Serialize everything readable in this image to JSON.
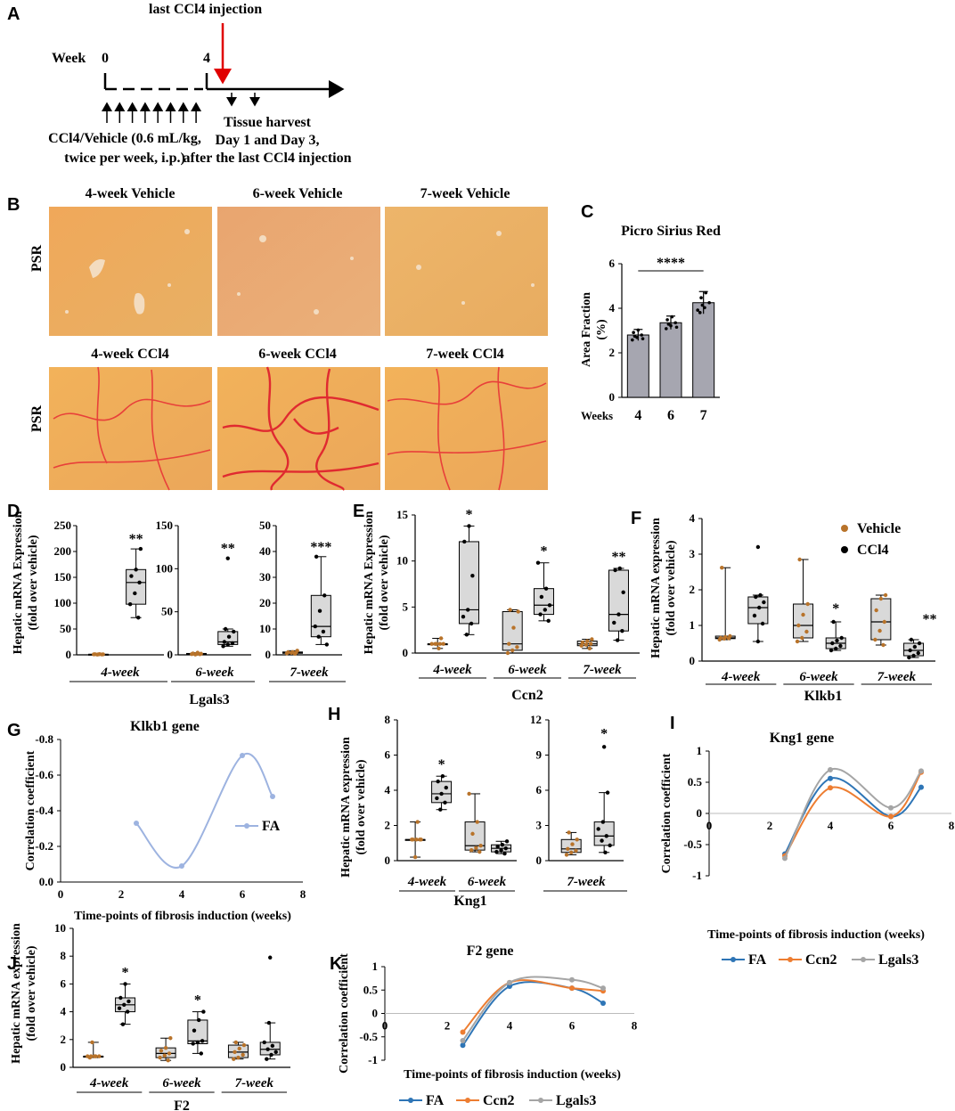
{
  "panel_labels": [
    "A",
    "B",
    "C",
    "D",
    "E",
    "F",
    "G",
    "H",
    "I",
    "J",
    "K"
  ],
  "panel_a": {
    "last_injection": "last CCl4 injection",
    "week_label": "Week",
    "week_start": "0",
    "week_end": "4",
    "dosing_line1": "CCl4/Vehicle (0.6 mL/kg,",
    "dosing_line2": "twice per week,   i.p.)",
    "harvest_line1": "Tissue harvest",
    "harvest_line2": "Day 1 and Day 3,",
    "harvest_line3": "after the last CCl4 injection"
  },
  "panel_b": {
    "row_label": "PSR",
    "images": [
      {
        "caption": "4-week Vehicle",
        "kind": "vehicle"
      },
      {
        "caption": "6-week Vehicle",
        "kind": "vehicle"
      },
      {
        "caption": "7-week Vehicle",
        "kind": "vehicle"
      },
      {
        "caption": "4-week CCl4",
        "kind": "ccl4"
      },
      {
        "caption": "6-week CCl4",
        "kind": "ccl4"
      },
      {
        "caption": "7-week CCl4",
        "kind": "ccl4"
      }
    ]
  },
  "colors": {
    "vehicle": "#b8732a",
    "ccl4": "#000000",
    "box": "#d9d9d9",
    "fa": "#2e75b6",
    "fa_light": "#9db3e0",
    "ccn2": "#ed7d31",
    "lgals3": "#a5a5a5",
    "red_arrow": "#e00000"
  },
  "chart_data": [
    {
      "id": "C",
      "type": "bar",
      "title": "Picro Sirius Red",
      "xlabel": "Weeks",
      "ylabel": "Area Fraction (%)",
      "categories": [
        "4",
        "6",
        "7"
      ],
      "values": [
        2.8,
        3.35,
        4.25
      ],
      "errors": [
        0.25,
        0.3,
        0.5
      ],
      "ylim": [
        0,
        6
      ],
      "yticks": [
        0,
        2,
        4,
        6
      ],
      "significance": "****"
    },
    {
      "id": "D",
      "type": "box",
      "gene": "Lgals3",
      "ylabel": "Hepatic mRNA Expression (fold over vehicle)",
      "groups": [
        {
          "label": "4-week",
          "ylim": [
            0,
            250
          ],
          "yticks": [
            0,
            50,
            100,
            150,
            200,
            250
          ],
          "star": "**",
          "vehicle": {
            "min": 0.5,
            "q1": 0.8,
            "median": 1,
            "q3": 1.1,
            "max": 1.3
          },
          "ccl4": {
            "min": 72,
            "q1": 98,
            "median": 140,
            "q3": 165,
            "max": 205
          }
        },
        {
          "label": "6-week",
          "ylim": [
            0,
            150
          ],
          "yticks": [
            0,
            50,
            100,
            150
          ],
          "star": "**",
          "vehicle": {
            "min": 0.4,
            "q1": 0.7,
            "median": 1,
            "q3": 1.6,
            "max": 2.5
          },
          "ccl4": {
            "min": 10,
            "q1": 12,
            "median": 15,
            "q3": 27,
            "max": 30,
            "outlier": 112
          }
        },
        {
          "label": "7-week",
          "ylim": [
            0,
            50
          ],
          "yticks": [
            0,
            10,
            20,
            30,
            40,
            50
          ],
          "star": "***",
          "vehicle": {
            "min": 0.4,
            "q1": 0.6,
            "median": 0.9,
            "q3": 1.1,
            "max": 1.6
          },
          "ccl4": {
            "min": 4,
            "q1": 7,
            "median": 11,
            "q3": 23,
            "max": 38
          }
        }
      ]
    },
    {
      "id": "E",
      "type": "box",
      "gene": "Ccn2",
      "ylabel": "Hepatic mRNA Expression (fold over vehicle)",
      "ylim": [
        0,
        15
      ],
      "yticks": [
        0,
        5,
        10,
        15
      ],
      "groups": [
        {
          "label": "4-week",
          "star": "*",
          "vehicle": {
            "min": 0.5,
            "q1": 1,
            "median": 1,
            "q3": 1,
            "max": 1.6
          },
          "ccl4": {
            "min": 2,
            "q1": 3.2,
            "median": 4.7,
            "q3": 12.1,
            "max": 13.8
          }
        },
        {
          "label": "6-week",
          "star": "*",
          "vehicle": {
            "min": 0,
            "q1": 0.3,
            "median": 1,
            "q3": 4.5,
            "max": 4.7
          },
          "ccl4": {
            "min": 3.5,
            "q1": 4.2,
            "median": 5.2,
            "q3": 7,
            "max": 9.8
          }
        },
        {
          "label": "7-week",
          "star": "**",
          "vehicle": {
            "min": 0.5,
            "q1": 0.8,
            "median": 1,
            "q3": 1.3,
            "max": 1.5
          },
          "ccl4": {
            "min": 1.4,
            "q1": 2.4,
            "median": 4.2,
            "q3": 9,
            "max": 9.2
          }
        }
      ]
    },
    {
      "id": "F",
      "type": "box",
      "gene": "Klkb1",
      "ylabel": "Hepatic mRNA expression (fold over vehicle)",
      "ylim": [
        0,
        4
      ],
      "yticks": [
        0,
        1,
        2,
        3,
        4
      ],
      "legend": [
        "Vehicle",
        "CCl4"
      ],
      "groups": [
        {
          "label": "4-week",
          "star": "",
          "vehicle": {
            "min": 0.6,
            "q1": 0.63,
            "median": 0.65,
            "q3": 0.7,
            "max": 2.62
          },
          "ccl4": {
            "min": 0.55,
            "q1": 1.05,
            "median": 1.5,
            "q3": 1.8,
            "max": 1.85,
            "outlier": 3.2
          }
        },
        {
          "label": "6-week",
          "star": "*",
          "vehicle": {
            "min": 0.55,
            "q1": 0.65,
            "median": 1,
            "q3": 1.6,
            "max": 2.85
          },
          "ccl4": {
            "min": 0.3,
            "q1": 0.35,
            "median": 0.5,
            "q3": 0.65,
            "max": 1.1
          }
        },
        {
          "label": "7-week",
          "star": "**",
          "vehicle": {
            "min": 0.45,
            "q1": 0.6,
            "median": 1.1,
            "q3": 1.75,
            "max": 1.85
          },
          "ccl4": {
            "min": 0.1,
            "q1": 0.15,
            "median": 0.3,
            "q3": 0.5,
            "max": 0.6
          }
        }
      ]
    },
    {
      "id": "G",
      "type": "line",
      "title": "Klkb1 gene",
      "xlabel": "Time-points of fibrosis induction (weeks)",
      "ylabel": "Correlation coefficient",
      "xlim": [
        0,
        8
      ],
      "xticks": [
        0,
        2,
        4,
        6,
        8
      ],
      "ylim": [
        0,
        -0.8
      ],
      "yticks": [
        0.0,
        -0.2,
        -0.4,
        -0.6,
        -0.8
      ],
      "ytick_labels": [
        "0.0",
        "-0.2",
        "-0.4",
        "-0.6",
        "-0.8"
      ],
      "series": [
        {
          "name": "FA",
          "x": [
            2.5,
            4,
            6,
            7
          ],
          "y": [
            -0.33,
            -0.09,
            -0.71,
            -0.48
          ]
        }
      ]
    },
    {
      "id": "H",
      "type": "box",
      "gene": "Kng1",
      "ylabel": "Hepatic mRNA expression (fold over vehicle)",
      "groups": [
        {
          "label": "4-week",
          "ylim": [
            0,
            8
          ],
          "yticks": [
            0,
            2,
            4,
            6,
            8
          ],
          "star": "*",
          "vehicle": {
            "min": 0.2,
            "q1": 1.2,
            "median": 1.2,
            "q3": 1.2,
            "max": 2.2
          },
          "ccl4": {
            "min": 2.9,
            "q1": 3.3,
            "median": 3.8,
            "q3": 4.5,
            "max": 4.8
          }
        },
        {
          "label": "6-week",
          "ylim": [
            0,
            8
          ],
          "yticks": [
            0,
            2,
            4,
            6,
            8
          ],
          "star": "",
          "vehicle": {
            "min": 0.5,
            "q1": 0.6,
            "median": 0.85,
            "q3": 2.2,
            "max": 3.8
          },
          "ccl4": {
            "min": 0.4,
            "q1": 0.5,
            "median": 0.7,
            "q3": 0.9,
            "max": 1.1
          }
        },
        {
          "label": "7-week",
          "ylim": [
            0,
            12
          ],
          "yticks": [
            0,
            3,
            6,
            9,
            12
          ],
          "star": "*",
          "vehicle": {
            "min": 0.5,
            "q1": 0.7,
            "median": 1,
            "q3": 1.8,
            "max": 2.4
          },
          "ccl4": {
            "min": 0.7,
            "q1": 1.3,
            "median": 2.1,
            "q3": 3.3,
            "max": 5.8,
            "outlier": 9.7
          }
        }
      ]
    },
    {
      "id": "I",
      "type": "line",
      "title": "Kng1 gene",
      "xlabel": "Time-points of fibrosis induction (weeks)",
      "ylabel": "Correlation coefficient",
      "xlim": [
        0,
        8
      ],
      "xticks": [
        0,
        2,
        4,
        6,
        8
      ],
      "ylim": [
        -1,
        1
      ],
      "yticks": [
        -1,
        -0.5,
        0,
        0.5,
        1
      ],
      "ytick_labels": [
        "-1",
        "-0.5",
        "0",
        "0.5",
        "1"
      ],
      "series": [
        {
          "name": "FA",
          "x": [
            2.5,
            4,
            6,
            7
          ],
          "y": [
            -0.65,
            0.56,
            -0.05,
            0.42
          ]
        },
        {
          "name": "Ccn2",
          "x": [
            2.5,
            4,
            6,
            7
          ],
          "y": [
            -0.68,
            0.41,
            -0.05,
            0.66
          ]
        },
        {
          "name": "Lgals3",
          "x": [
            2.5,
            4,
            6,
            7
          ],
          "y": [
            -0.72,
            0.7,
            0.09,
            0.68
          ]
        }
      ]
    },
    {
      "id": "J",
      "type": "box",
      "gene": "F2",
      "ylabel": "Hepatic mRNA expression (fold over vehicle)",
      "ylim": [
        0,
        10
      ],
      "yticks": [
        0,
        2,
        4,
        6,
        8,
        10
      ],
      "groups": [
        {
          "label": "4-week",
          "star": "*",
          "vehicle": {
            "min": 0.7,
            "q1": 0.8,
            "median": 0.8,
            "q3": 0.8,
            "max": 1.8
          },
          "ccl4": {
            "min": 3.1,
            "q1": 4,
            "median": 4.5,
            "q3": 5,
            "max": 6
          }
        },
        {
          "label": "6-week",
          "star": "*",
          "vehicle": {
            "min": 0.5,
            "q1": 0.7,
            "median": 1,
            "q3": 1.4,
            "max": 2.1
          },
          "ccl4": {
            "min": 1,
            "q1": 1.7,
            "median": 1.9,
            "q3": 3.4,
            "max": 4
          }
        },
        {
          "label": "7-week",
          "star": "",
          "vehicle": {
            "min": 0.6,
            "q1": 0.7,
            "median": 1.1,
            "q3": 1.6,
            "max": 1.8
          },
          "ccl4": {
            "min": 0.6,
            "q1": 0.9,
            "median": 1.3,
            "q3": 1.8,
            "max": 3.2,
            "outlier": 7.9
          }
        }
      ]
    },
    {
      "id": "K",
      "type": "line",
      "title": "F2 gene",
      "xlabel": "Time-points of fibrosis induction (weeks)",
      "ylabel": "Correlation coefficient",
      "xlim": [
        0,
        8
      ],
      "xticks": [
        0,
        2,
        4,
        6,
        8
      ],
      "ylim": [
        -1,
        1
      ],
      "yticks": [
        -1,
        -0.5,
        0,
        0.5,
        1
      ],
      "ytick_labels": [
        "-1",
        "-0.5",
        "0",
        "0.5",
        "1"
      ],
      "series": [
        {
          "name": "FA",
          "x": [
            2.5,
            4,
            6,
            7
          ],
          "y": [
            -0.68,
            0.58,
            0.54,
            0.22
          ]
        },
        {
          "name": "Ccn2",
          "x": [
            2.5,
            4,
            6,
            7
          ],
          "y": [
            -0.4,
            0.66,
            0.54,
            0.48
          ]
        },
        {
          "name": "Lgals3",
          "x": [
            2.5,
            4,
            6,
            7
          ],
          "y": [
            -0.58,
            0.66,
            0.72,
            0.54
          ]
        }
      ]
    }
  ]
}
